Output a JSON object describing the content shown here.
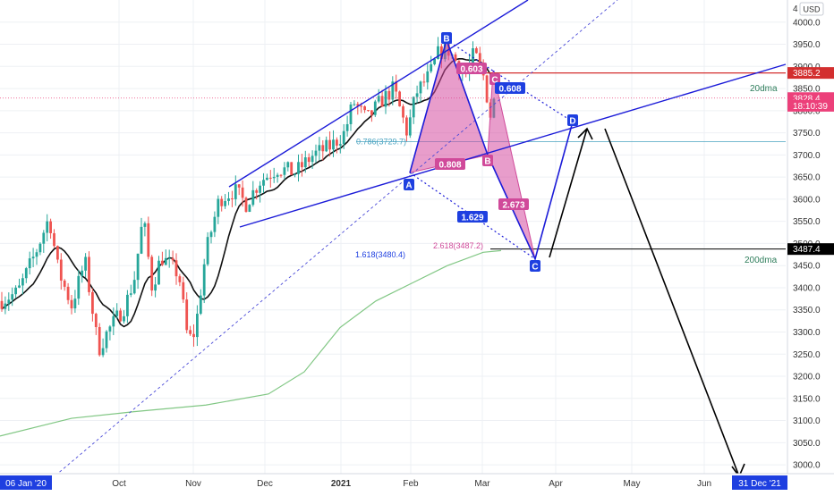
{
  "currency_label": "USD",
  "chart_data": {
    "type": "candlestick",
    "y_range": [
      2980,
      4050
    ],
    "y_ticks": [
      3000,
      3050,
      3100,
      3150,
      3200,
      3250,
      3300,
      3350,
      3400,
      3450,
      3500,
      3550,
      3600,
      3650,
      3700,
      3750,
      3800,
      3850,
      3900,
      3950,
      4000
    ],
    "x_ticks": [
      "Oct",
      "Nov",
      "Dec",
      "2021",
      "Feb",
      "Mar",
      "Apr",
      "May",
      "Jun"
    ],
    "x_start_label": "06 Jan '20",
    "x_end_label": "31 Dec '21",
    "price_labels": [
      {
        "text": "3885.2",
        "value": 3885.2,
        "color": "#d32f2f"
      },
      {
        "text": "3828.4",
        "value": 3828.4,
        "color": "#ec407a"
      },
      {
        "text": "18:10:39",
        "value": 3811,
        "color": "#ec407a"
      },
      {
        "text": "3487.4",
        "value": 3487.4,
        "color": "#000000"
      }
    ],
    "moving_averages": [
      {
        "name": "20dma",
        "color": "#000000"
      },
      {
        "name": "200dma",
        "color": "#81c784"
      }
    ],
    "harmonic_points": [
      {
        "label": "A",
        "value": 3660
      },
      {
        "label": "B",
        "value": 3960
      },
      {
        "label": "C",
        "value": 3890
      },
      {
        "label": "B",
        "value": 3700
      },
      {
        "label": "C",
        "value": 3465
      },
      {
        "label": "D",
        "value": 3775
      }
    ],
    "ratios": [
      {
        "text": "0.603"
      },
      {
        "text": "0.608"
      },
      {
        "text": "0.808"
      },
      {
        "text": "1.629"
      },
      {
        "text": "2.673"
      }
    ],
    "fib_levels": [
      {
        "text": "0.786(3729.7)",
        "value": 3729.7
      },
      {
        "text": "1.618(3480.4)",
        "value": 3480.4
      },
      {
        "text": "2.618(3487.2)",
        "value": 3487.2
      }
    ],
    "horizontal_levels": [
      {
        "value": 3885.2,
        "color": "#d32f2f"
      },
      {
        "value": 3729.7,
        "color": "#4aa3c0"
      },
      {
        "value": 3487.4,
        "color": "#000000"
      }
    ]
  }
}
